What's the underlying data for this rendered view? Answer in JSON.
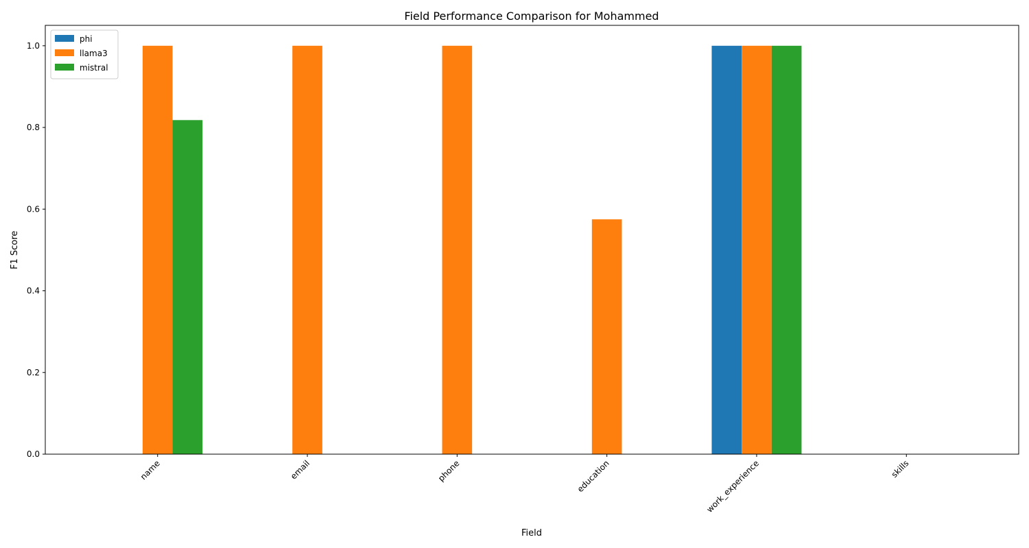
{
  "chart_data": {
    "type": "bar",
    "title": "Field Performance Comparison for Mohammed",
    "xlabel": "Field",
    "ylabel": "F1 Score",
    "categories": [
      "name",
      "email",
      "phone",
      "education",
      "work_experience",
      "skills"
    ],
    "series": [
      {
        "name": "phi",
        "values": [
          0,
          0,
          0,
          0,
          1.0,
          0
        ]
      },
      {
        "name": "llama3",
        "values": [
          1.0,
          1.0,
          1.0,
          0.575,
          1.0,
          0
        ]
      },
      {
        "name": "mistral",
        "values": [
          0.818,
          0,
          0,
          0,
          1.0,
          0
        ]
      }
    ],
    "colors": {
      "phi": "#1f77b4",
      "llama3": "#ff7f0e",
      "mistral": "#2ca02c"
    },
    "ylim": [
      0,
      1.05
    ],
    "yticks": [
      "0.0",
      "0.2",
      "0.4",
      "0.6",
      "0.8",
      "1.0"
    ],
    "legend": "top-left",
    "grid": false
  }
}
